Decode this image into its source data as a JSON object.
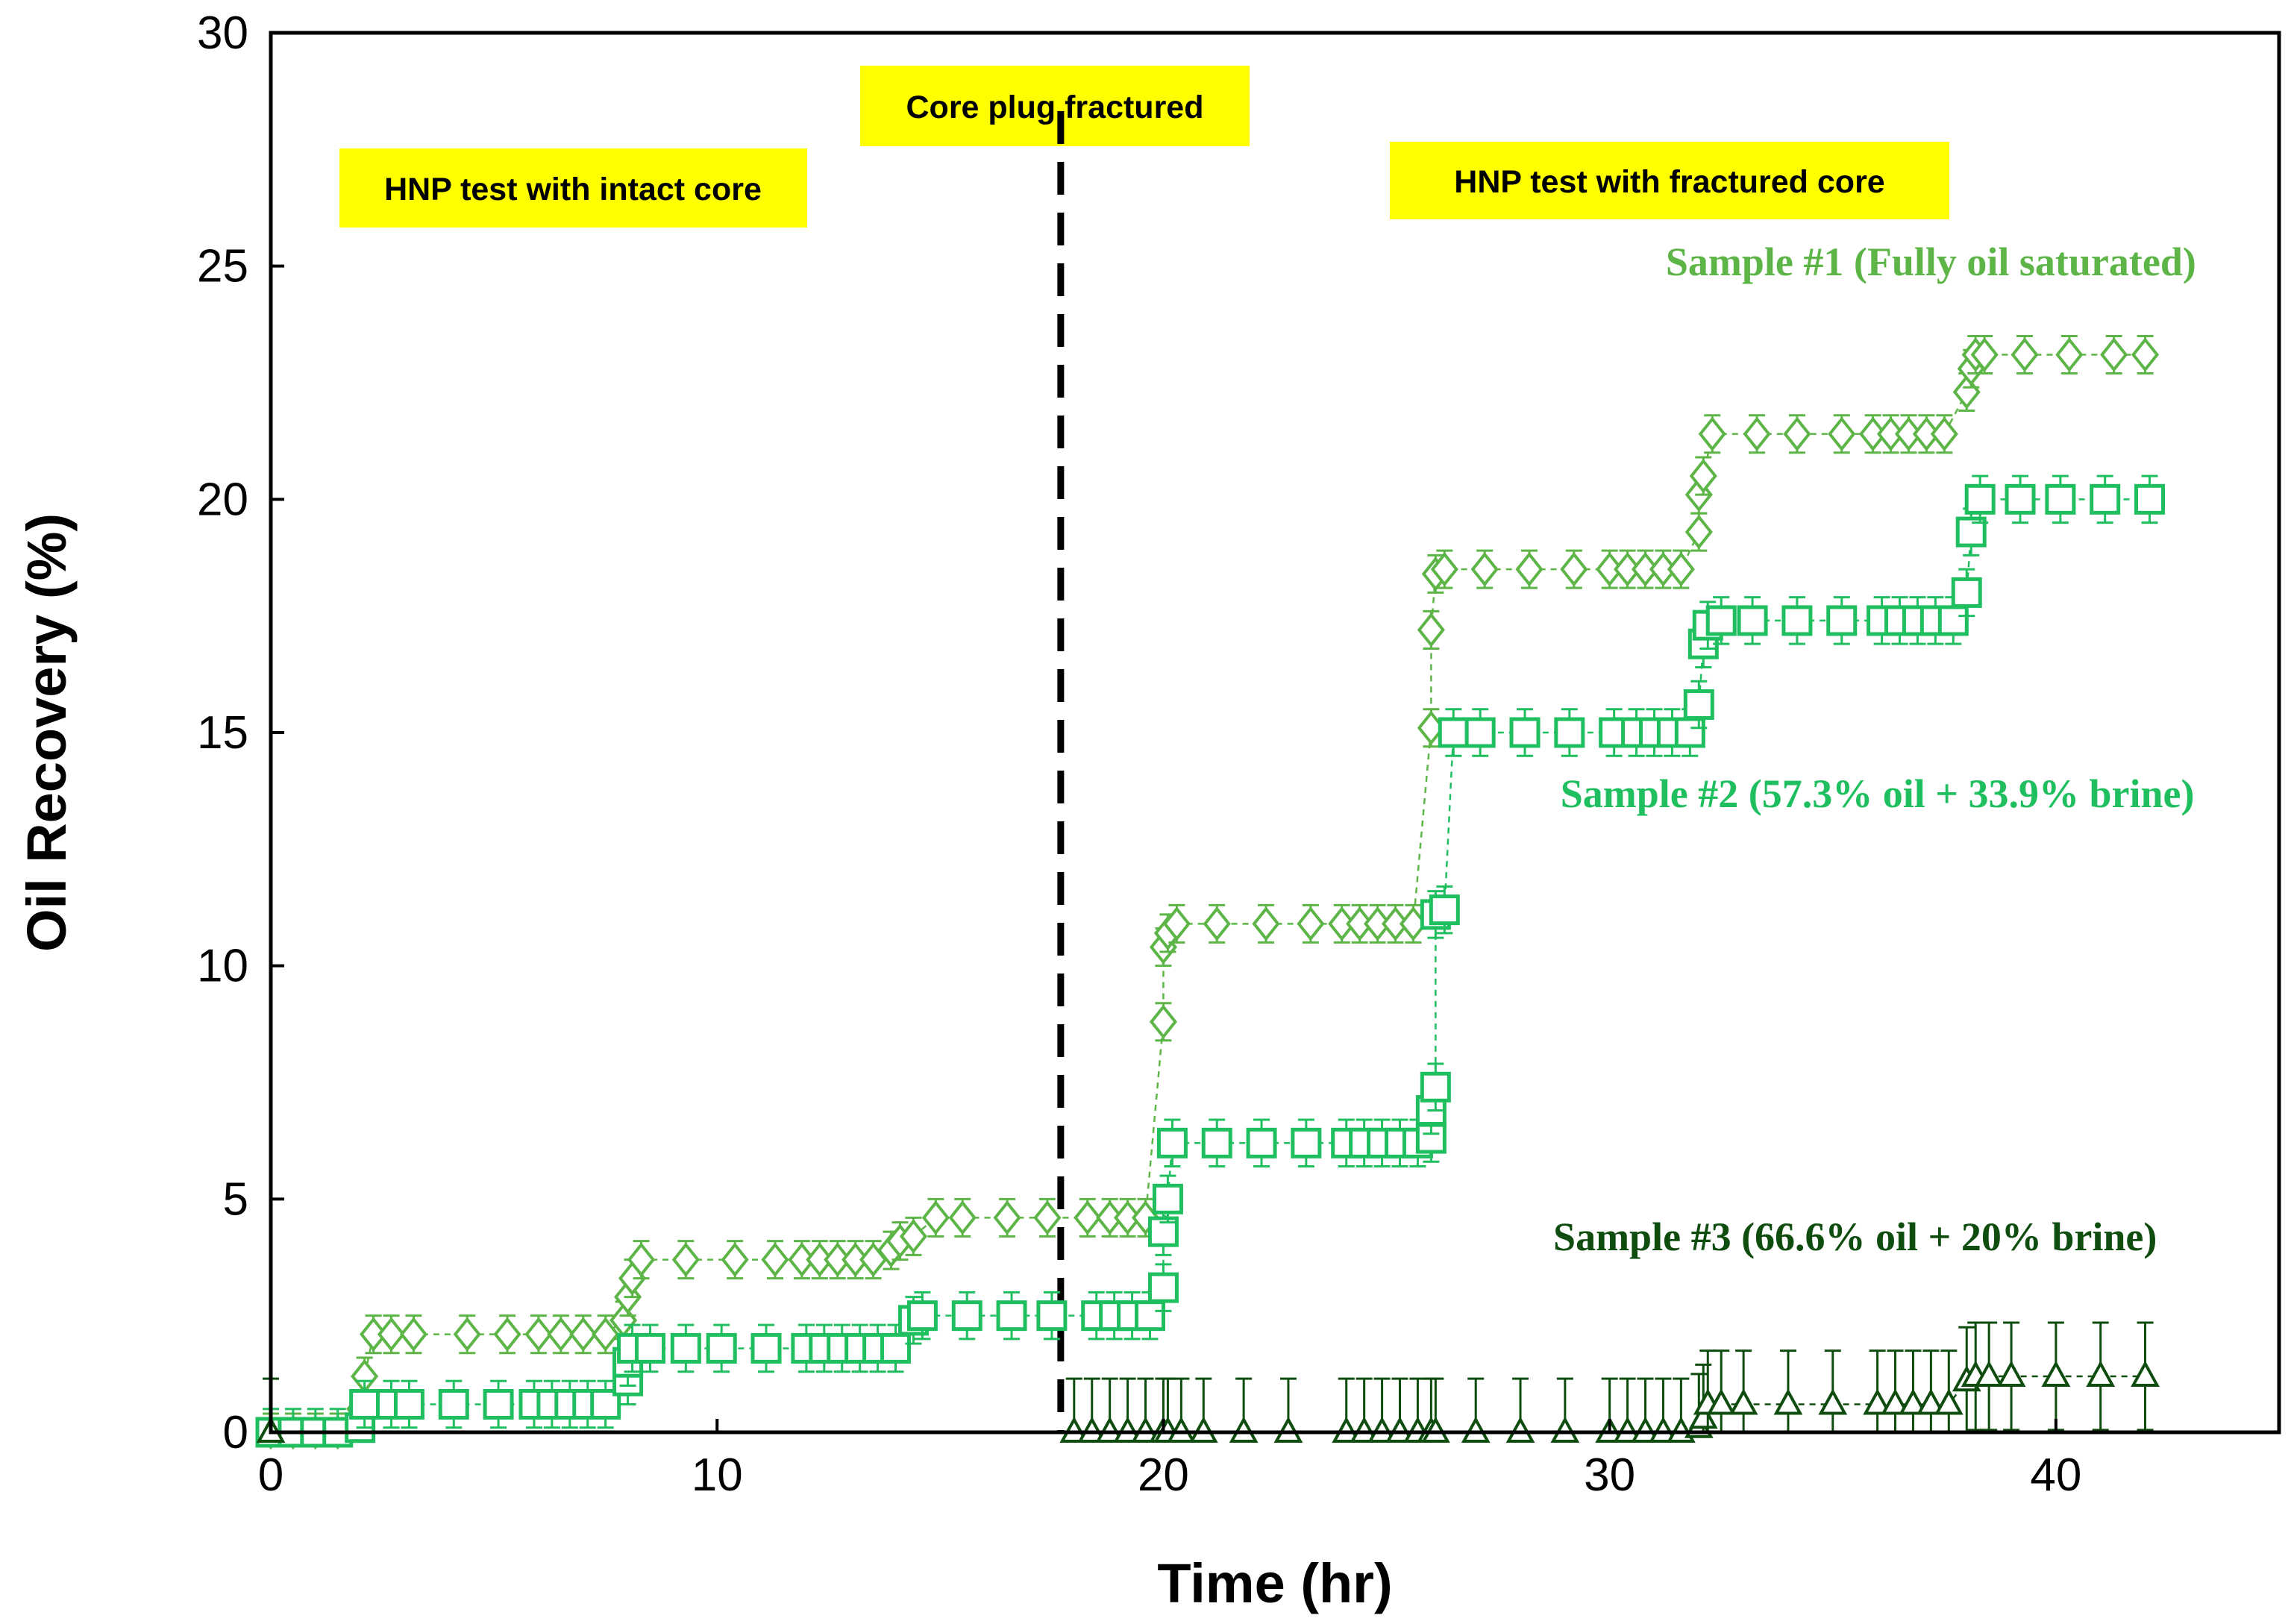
{
  "chart_data": {
    "type": "scatter",
    "xlabel": "Time (hr)",
    "ylabel": "Oil Recovery (%)",
    "xlim": [
      0,
      45
    ],
    "ylim": [
      0,
      30
    ],
    "xticks": [
      0,
      10,
      20,
      30,
      40
    ],
    "yticks": [
      0,
      5,
      10,
      15,
      20,
      25,
      30
    ],
    "grid": false,
    "legend": "none (inline series labels)",
    "vertical_line": {
      "x": 17.7,
      "style": "dashed",
      "color": "#000000"
    },
    "annotations": [
      {
        "text": "HNP test with intact core",
        "x": 7.0,
        "y": 26.5
      },
      {
        "text": "Core plug fractured",
        "x": 17.5,
        "y": 28.2
      },
      {
        "text": "HNP test with fractured core",
        "x": 31.5,
        "y": 26.7
      }
    ],
    "series": [
      {
        "name": "Sample #1 (Fully oil saturated)",
        "label": "Sample #1 (Fully oil saturated)",
        "color": "#5cb546",
        "marker": "diamond",
        "error": 0.4,
        "label_pos": {
          "x": 37.2,
          "y": 24.8
        },
        "points": [
          [
            0,
            0
          ],
          [
            0.5,
            0
          ],
          [
            1,
            0
          ],
          [
            1.5,
            0
          ],
          [
            2,
            0.5
          ],
          [
            2.1,
            1.2
          ],
          [
            2.3,
            2.1
          ],
          [
            2.7,
            2.1
          ],
          [
            3.2,
            2.1
          ],
          [
            4.4,
            2.1
          ],
          [
            5.3,
            2.1
          ],
          [
            6,
            2.1
          ],
          [
            6.5,
            2.1
          ],
          [
            7,
            2.1
          ],
          [
            7.5,
            2.1
          ],
          [
            7.9,
            2.4
          ],
          [
            8,
            2.9
          ],
          [
            8.1,
            3.3
          ],
          [
            8.3,
            3.7
          ],
          [
            9.3,
            3.7
          ],
          [
            10.4,
            3.7
          ],
          [
            11.3,
            3.7
          ],
          [
            11.9,
            3.7
          ],
          [
            12.3,
            3.7
          ],
          [
            12.7,
            3.7
          ],
          [
            13.1,
            3.7
          ],
          [
            13.5,
            3.7
          ],
          [
            13.9,
            3.9
          ],
          [
            14.1,
            4.1
          ],
          [
            14.4,
            4.2
          ],
          [
            14.9,
            4.6
          ],
          [
            15.5,
            4.6
          ],
          [
            16.5,
            4.6
          ],
          [
            17.4,
            4.6
          ],
          [
            18.3,
            4.6
          ],
          [
            18.8,
            4.6
          ],
          [
            19.2,
            4.6
          ],
          [
            19.6,
            4.6
          ],
          [
            20,
            8.8
          ],
          [
            20,
            10.4
          ],
          [
            20.1,
            10.7
          ],
          [
            20.3,
            10.9
          ],
          [
            21.2,
            10.9
          ],
          [
            22.3,
            10.9
          ],
          [
            23.3,
            10.9
          ],
          [
            24,
            10.9
          ],
          [
            24.4,
            10.9
          ],
          [
            24.8,
            10.9
          ],
          [
            25.2,
            10.9
          ],
          [
            25.6,
            10.9
          ],
          [
            26,
            15.1
          ],
          [
            26,
            17.2
          ],
          [
            26.1,
            18.4
          ],
          [
            26.3,
            18.5
          ],
          [
            27.2,
            18.5
          ],
          [
            28.2,
            18.5
          ],
          [
            29.2,
            18.5
          ],
          [
            30,
            18.5
          ],
          [
            30.4,
            18.5
          ],
          [
            30.8,
            18.5
          ],
          [
            31.2,
            18.5
          ],
          [
            31.6,
            18.5
          ],
          [
            32,
            19.3
          ],
          [
            32,
            20.1
          ],
          [
            32.1,
            20.5
          ],
          [
            32.3,
            21.4
          ],
          [
            33.3,
            21.4
          ],
          [
            34.2,
            21.4
          ],
          [
            35.2,
            21.4
          ],
          [
            35.9,
            21.4
          ],
          [
            36.3,
            21.4
          ],
          [
            36.7,
            21.4
          ],
          [
            37.1,
            21.4
          ],
          [
            37.5,
            21.4
          ],
          [
            38,
            22.3
          ],
          [
            38.1,
            22.8
          ],
          [
            38.2,
            23.1
          ],
          [
            38.4,
            23.1
          ],
          [
            39.3,
            23.1
          ],
          [
            40.3,
            23.1
          ],
          [
            41.3,
            23.1
          ],
          [
            42,
            23.1
          ]
        ]
      },
      {
        "name": "Sample #2 (57.3% oil + 33.9% brine)",
        "label": "Sample #2 (57.3% oil + 33.9% brine)",
        "color": "#1fbf5f",
        "marker": "square",
        "error": 0.5,
        "label_pos": {
          "x": 36.0,
          "y": 13.4
        },
        "points": [
          [
            0,
            0
          ],
          [
            0.5,
            0
          ],
          [
            1,
            0
          ],
          [
            1.5,
            0
          ],
          [
            2,
            0.1
          ],
          [
            2.1,
            0.6
          ],
          [
            2.7,
            0.6
          ],
          [
            3.1,
            0.6
          ],
          [
            4.1,
            0.6
          ],
          [
            5.1,
            0.6
          ],
          [
            5.9,
            0.6
          ],
          [
            6.3,
            0.6
          ],
          [
            6.7,
            0.6
          ],
          [
            7.1,
            0.6
          ],
          [
            7.5,
            0.6
          ],
          [
            8,
            1.1
          ],
          [
            8,
            1.5
          ],
          [
            8.1,
            1.8
          ],
          [
            8.5,
            1.8
          ],
          [
            9.3,
            1.8
          ],
          [
            10.1,
            1.8
          ],
          [
            11.1,
            1.8
          ],
          [
            12,
            1.8
          ],
          [
            12.4,
            1.8
          ],
          [
            12.8,
            1.8
          ],
          [
            13.2,
            1.8
          ],
          [
            13.6,
            1.8
          ],
          [
            14,
            1.8
          ],
          [
            14.4,
            2.4
          ],
          [
            14.6,
            2.5
          ],
          [
            15.6,
            2.5
          ],
          [
            16.6,
            2.5
          ],
          [
            17.5,
            2.5
          ],
          [
            18.5,
            2.5
          ],
          [
            18.9,
            2.5
          ],
          [
            19.3,
            2.5
          ],
          [
            19.7,
            2.5
          ],
          [
            20,
            3.1
          ],
          [
            20,
            4.3
          ],
          [
            20.1,
            5.0
          ],
          [
            20.2,
            6.2
          ],
          [
            21.2,
            6.2
          ],
          [
            22.2,
            6.2
          ],
          [
            23.2,
            6.2
          ],
          [
            24.1,
            6.2
          ],
          [
            24.5,
            6.2
          ],
          [
            24.9,
            6.2
          ],
          [
            25.3,
            6.2
          ],
          [
            25.7,
            6.2
          ],
          [
            26,
            6.3
          ],
          [
            26,
            6.9
          ],
          [
            26.1,
            7.4
          ],
          [
            26.1,
            11.1
          ],
          [
            26.3,
            11.2
          ],
          [
            26.5,
            15.0
          ],
          [
            27.1,
            15.0
          ],
          [
            28.1,
            15.0
          ],
          [
            29.1,
            15.0
          ],
          [
            30.1,
            15.0
          ],
          [
            30.6,
            15.0
          ],
          [
            31,
            15.0
          ],
          [
            31.4,
            15.0
          ],
          [
            31.8,
            15.0
          ],
          [
            32,
            15.6
          ],
          [
            32.1,
            16.9
          ],
          [
            32.2,
            17.3
          ],
          [
            32.5,
            17.4
          ],
          [
            33.2,
            17.4
          ],
          [
            34.2,
            17.4
          ],
          [
            35.2,
            17.4
          ],
          [
            36.1,
            17.4
          ],
          [
            36.5,
            17.4
          ],
          [
            36.9,
            17.4
          ],
          [
            37.3,
            17.4
          ],
          [
            37.7,
            17.4
          ],
          [
            38,
            18.0
          ],
          [
            38.1,
            19.3
          ],
          [
            38.3,
            20.0
          ],
          [
            39.2,
            20.0
          ],
          [
            40.1,
            20.0
          ],
          [
            41.1,
            20.0
          ],
          [
            42.1,
            20.0
          ]
        ]
      },
      {
        "name": "Sample #3 (66.6% oil + 20% brine)",
        "label": "Sample #3 (66.6% oil + 20% brine)",
        "color": "#0e4d0e",
        "marker": "triangle",
        "error": 1.15,
        "label_pos": {
          "x": 35.5,
          "y": 3.9
        },
        "points": [
          [
            0,
            0
          ],
          [
            18,
            0
          ],
          [
            18.4,
            0
          ],
          [
            18.8,
            0
          ],
          [
            19.2,
            0
          ],
          [
            19.6,
            0
          ],
          [
            20,
            0
          ],
          [
            20.1,
            0
          ],
          [
            20.4,
            0
          ],
          [
            20.9,
            0
          ],
          [
            21.8,
            0
          ],
          [
            22.8,
            0
          ],
          [
            24.1,
            0
          ],
          [
            24.5,
            0
          ],
          [
            24.9,
            0
          ],
          [
            25.3,
            0
          ],
          [
            25.7,
            0
          ],
          [
            26,
            0
          ],
          [
            26.1,
            0
          ],
          [
            27,
            0
          ],
          [
            28,
            0
          ],
          [
            29,
            0
          ],
          [
            30,
            0
          ],
          [
            30.4,
            0
          ],
          [
            30.8,
            0
          ],
          [
            31.2,
            0
          ],
          [
            31.6,
            0
          ],
          [
            32,
            0.1
          ],
          [
            32.1,
            0.3
          ],
          [
            32.2,
            0.6
          ],
          [
            32.5,
            0.6
          ],
          [
            33,
            0.6
          ],
          [
            34,
            0.6
          ],
          [
            35,
            0.6
          ],
          [
            36,
            0.6
          ],
          [
            36.4,
            0.6
          ],
          [
            36.8,
            0.6
          ],
          [
            37.2,
            0.6
          ],
          [
            37.6,
            0.6
          ],
          [
            38,
            1.1
          ],
          [
            38.2,
            1.2
          ],
          [
            38.5,
            1.2
          ],
          [
            39,
            1.2
          ],
          [
            40,
            1.2
          ],
          [
            41,
            1.2
          ],
          [
            42,
            1.2
          ]
        ]
      }
    ]
  }
}
